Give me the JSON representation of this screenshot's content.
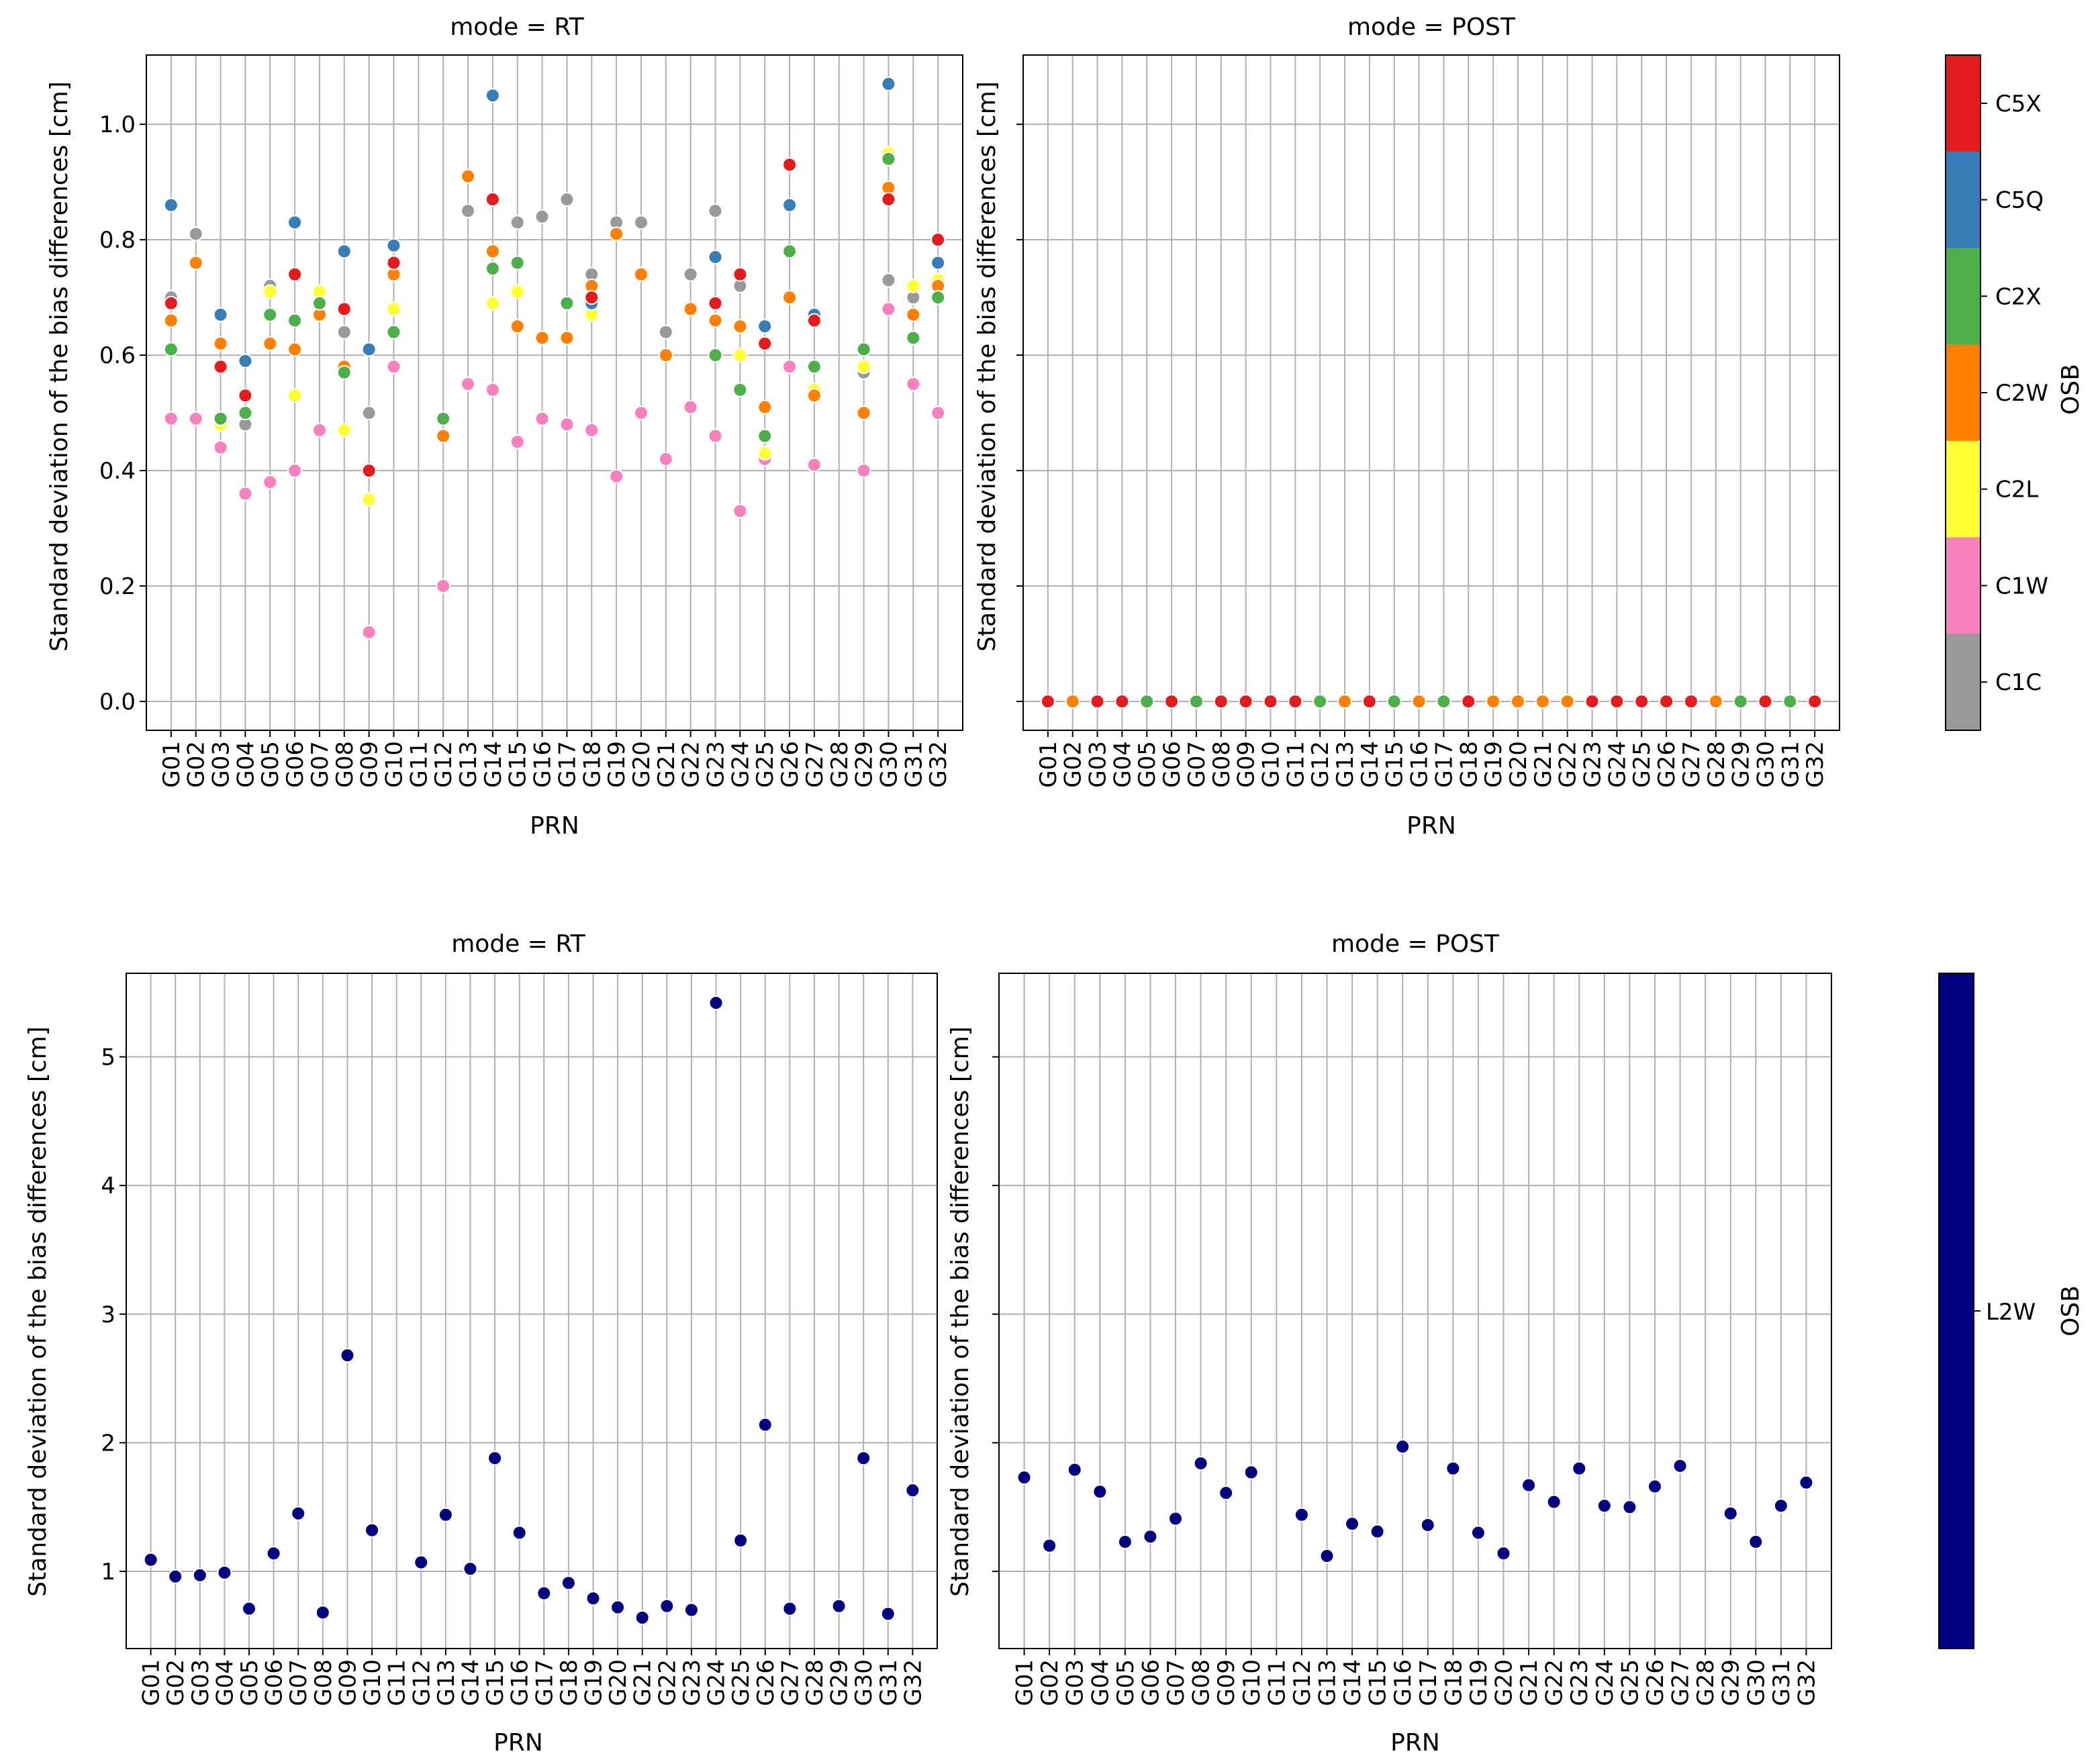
{
  "chart_data": [
    {
      "type": "scatter",
      "title": "mode = RT",
      "xlabel": "PRN",
      "ylabel": "Standard deviation of the bias differences [cm]",
      "ylim": [
        -0.05,
        1.12
      ],
      "yticks": [
        "0.0",
        "0.2",
        "0.4",
        "0.6",
        "0.8",
        "1.0"
      ],
      "grid": true,
      "categories": [
        "G01",
        "G02",
        "G03",
        "G04",
        "G05",
        "G06",
        "G07",
        "G08",
        "G09",
        "G10",
        "G11",
        "G12",
        "G13",
        "G14",
        "G15",
        "G16",
        "G17",
        "G18",
        "G19",
        "G20",
        "G21",
        "G22",
        "G23",
        "G24",
        "G25",
        "G26",
        "G27",
        "G28",
        "G29",
        "G30",
        "G31",
        "G32"
      ],
      "series": [
        {
          "name": "C1C",
          "values": [
            0.7,
            0.81,
            null,
            0.48,
            0.72,
            null,
            null,
            0.64,
            0.5,
            null,
            null,
            null,
            0.85,
            null,
            0.83,
            0.84,
            0.87,
            0.74,
            0.83,
            0.83,
            0.64,
            0.74,
            0.85,
            0.72,
            null,
            null,
            null,
            null,
            0.57,
            0.73,
            0.7,
            null
          ]
        },
        {
          "name": "C1W",
          "values": [
            0.49,
            0.49,
            0.44,
            0.36,
            0.38,
            0.4,
            0.47,
            null,
            0.12,
            0.58,
            null,
            0.2,
            0.55,
            0.54,
            0.45,
            0.49,
            0.48,
            0.47,
            0.39,
            0.5,
            0.42,
            0.51,
            0.46,
            0.33,
            0.42,
            0.58,
            0.41,
            null,
            0.4,
            0.68,
            0.55,
            0.5
          ]
        },
        {
          "name": "C2L",
          "values": [
            null,
            null,
            0.48,
            null,
            0.71,
            0.53,
            0.71,
            0.47,
            0.35,
            0.68,
            null,
            null,
            null,
            0.69,
            0.71,
            null,
            null,
            0.67,
            null,
            null,
            null,
            null,
            null,
            0.6,
            0.43,
            null,
            0.54,
            null,
            0.58,
            0.95,
            0.72,
            0.73
          ]
        },
        {
          "name": "C2W",
          "values": [
            0.66,
            0.76,
            0.62,
            null,
            0.62,
            0.61,
            0.67,
            0.58,
            null,
            0.74,
            null,
            0.46,
            0.91,
            0.78,
            0.65,
            0.63,
            0.63,
            0.72,
            0.81,
            0.74,
            0.6,
            0.68,
            0.66,
            0.65,
            0.51,
            0.7,
            0.53,
            null,
            0.5,
            0.89,
            0.67,
            0.72
          ]
        },
        {
          "name": "C2X",
          "values": [
            0.61,
            null,
            0.49,
            0.5,
            0.67,
            0.66,
            0.69,
            0.57,
            null,
            0.64,
            null,
            0.49,
            null,
            0.75,
            0.76,
            null,
            0.69,
            null,
            null,
            null,
            null,
            null,
            0.6,
            0.54,
            0.46,
            0.78,
            0.58,
            null,
            0.61,
            0.94,
            0.63,
            0.7
          ]
        },
        {
          "name": "C5Q",
          "values": [
            0.86,
            null,
            0.67,
            0.59,
            null,
            0.83,
            null,
            0.78,
            0.61,
            0.79,
            null,
            null,
            null,
            1.05,
            null,
            null,
            null,
            0.69,
            null,
            null,
            null,
            null,
            0.77,
            null,
            0.65,
            0.86,
            0.67,
            null,
            null,
            1.07,
            null,
            0.76
          ]
        },
        {
          "name": "C5X",
          "values": [
            0.69,
            null,
            0.58,
            0.53,
            null,
            0.74,
            null,
            0.68,
            0.4,
            0.76,
            null,
            null,
            null,
            0.87,
            null,
            null,
            null,
            0.7,
            null,
            null,
            null,
            null,
            0.69,
            0.74,
            0.62,
            0.93,
            0.66,
            null,
            null,
            0.87,
            null,
            0.8
          ]
        }
      ]
    },
    {
      "type": "scatter",
      "title": "mode = POST",
      "xlabel": "PRN",
      "ylabel": "Standard deviation of the bias differences [cm]",
      "ylim": [
        -0.05,
        1.12
      ],
      "grid": true,
      "categories": [
        "G01",
        "G02",
        "G03",
        "G04",
        "G05",
        "G06",
        "G07",
        "G08",
        "G09",
        "G10",
        "G11",
        "G12",
        "G13",
        "G14",
        "G15",
        "G16",
        "G17",
        "G18",
        "G19",
        "G20",
        "G21",
        "G22",
        "G23",
        "G24",
        "G25",
        "G26",
        "G27",
        "G28",
        "G29",
        "G30",
        "G31",
        "G32"
      ],
      "points": [
        {
          "x": "G01",
          "y": 0,
          "osb": "C5X"
        },
        {
          "x": "G02",
          "y": 0,
          "osb": "C2W"
        },
        {
          "x": "G03",
          "y": 0,
          "osb": "C5X"
        },
        {
          "x": "G04",
          "y": 0,
          "osb": "C5X"
        },
        {
          "x": "G05",
          "y": 0,
          "osb": "C2X"
        },
        {
          "x": "G06",
          "y": 0,
          "osb": "C5X"
        },
        {
          "x": "G07",
          "y": 0,
          "osb": "C2X"
        },
        {
          "x": "G08",
          "y": 0,
          "osb": "C5X"
        },
        {
          "x": "G09",
          "y": 0,
          "osb": "C5X"
        },
        {
          "x": "G10",
          "y": 0,
          "osb": "C5X"
        },
        {
          "x": "G11",
          "y": 0,
          "osb": "C5X"
        },
        {
          "x": "G12",
          "y": 0,
          "osb": "C2X"
        },
        {
          "x": "G13",
          "y": 0,
          "osb": "C2W"
        },
        {
          "x": "G14",
          "y": 0,
          "osb": "C5X"
        },
        {
          "x": "G15",
          "y": 0,
          "osb": "C2X"
        },
        {
          "x": "G16",
          "y": 0,
          "osb": "C2W"
        },
        {
          "x": "G17",
          "y": 0,
          "osb": "C2X"
        },
        {
          "x": "G18",
          "y": 0,
          "osb": "C5X"
        },
        {
          "x": "G19",
          "y": 0,
          "osb": "C2W"
        },
        {
          "x": "G20",
          "y": 0,
          "osb": "C2W"
        },
        {
          "x": "G21",
          "y": 0,
          "osb": "C2W"
        },
        {
          "x": "G22",
          "y": 0,
          "osb": "C2W"
        },
        {
          "x": "G23",
          "y": 0,
          "osb": "C5X"
        },
        {
          "x": "G24",
          "y": 0,
          "osb": "C5X"
        },
        {
          "x": "G25",
          "y": 0,
          "osb": "C5X"
        },
        {
          "x": "G26",
          "y": 0,
          "osb": "C5X"
        },
        {
          "x": "G27",
          "y": 0,
          "osb": "C5X"
        },
        {
          "x": "G28",
          "y": 0,
          "osb": "C2W"
        },
        {
          "x": "G29",
          "y": 0,
          "osb": "C2X"
        },
        {
          "x": "G30",
          "y": 0,
          "osb": "C5X"
        },
        {
          "x": "G31",
          "y": 0,
          "osb": "C2X"
        },
        {
          "x": "G32",
          "y": 0,
          "osb": "C5X"
        }
      ]
    },
    {
      "type": "scatter",
      "title": "mode = RT",
      "xlabel": "PRN",
      "ylabel": "Standard deviation of the bias differences [cm]",
      "ylim": [
        0.4,
        5.65
      ],
      "yticks": [
        "1",
        "2",
        "3",
        "4",
        "5"
      ],
      "grid": true,
      "categories": [
        "G01",
        "G02",
        "G03",
        "G04",
        "G05",
        "G06",
        "G07",
        "G08",
        "G09",
        "G10",
        "G11",
        "G12",
        "G13",
        "G14",
        "G15",
        "G16",
        "G17",
        "G18",
        "G19",
        "G20",
        "G21",
        "G22",
        "G23",
        "G24",
        "G25",
        "G26",
        "G27",
        "G28",
        "G29",
        "G30",
        "G31",
        "G32"
      ],
      "series": [
        {
          "name": "L2W",
          "values": [
            1.09,
            0.96,
            0.97,
            0.99,
            0.71,
            1.14,
            1.45,
            0.68,
            2.68,
            1.32,
            null,
            1.07,
            1.44,
            1.02,
            1.88,
            1.3,
            0.83,
            0.91,
            0.79,
            0.72,
            0.64,
            0.73,
            0.7,
            5.42,
            1.24,
            2.14,
            0.71,
            null,
            0.73,
            1.88,
            0.67,
            1.63
          ]
        }
      ]
    },
    {
      "type": "scatter",
      "title": "mode = POST",
      "xlabel": "PRN",
      "ylabel": "Standard deviation of the bias differences [cm]",
      "ylim": [
        0.4,
        5.65
      ],
      "grid": true,
      "categories": [
        "G01",
        "G02",
        "G03",
        "G04",
        "G05",
        "G06",
        "G07",
        "G08",
        "G09",
        "G10",
        "G11",
        "G12",
        "G13",
        "G14",
        "G15",
        "G16",
        "G17",
        "G18",
        "G19",
        "G20",
        "G21",
        "G22",
        "G23",
        "G24",
        "G25",
        "G26",
        "G27",
        "G28",
        "G29",
        "G30",
        "G31",
        "G32"
      ],
      "series": [
        {
          "name": "L2W",
          "values": [
            1.73,
            1.2,
            1.79,
            1.62,
            1.23,
            1.27,
            1.41,
            1.84,
            1.61,
            1.77,
            null,
            1.44,
            1.12,
            1.37,
            1.31,
            1.97,
            1.36,
            1.8,
            1.3,
            1.14,
            1.67,
            1.54,
            1.8,
            1.51,
            1.5,
            1.66,
            1.82,
            null,
            1.45,
            1.23,
            1.51,
            1.69
          ]
        }
      ]
    }
  ],
  "legend_top": {
    "title": "OSB",
    "entries": [
      {
        "label": "C5X",
        "color": "#e41a1c"
      },
      {
        "label": "C5Q",
        "color": "#377eb8"
      },
      {
        "label": "C2X",
        "color": "#4daf4a"
      },
      {
        "label": "C2W",
        "color": "#ff7f00"
      },
      {
        "label": "C2L",
        "color": "#ffff33"
      },
      {
        "label": "C1W",
        "color": "#f781bf"
      },
      {
        "label": "C1C",
        "color": "#999999"
      }
    ]
  },
  "legend_bottom": {
    "title": "OSB",
    "entries": [
      {
        "label": "L2W",
        "color": "#000080"
      }
    ]
  }
}
